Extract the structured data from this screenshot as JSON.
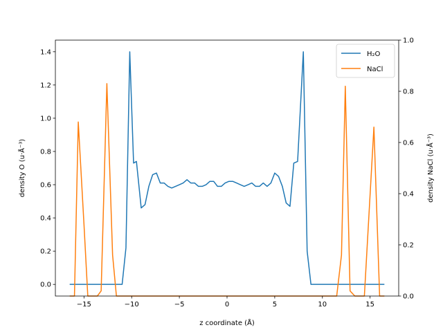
{
  "chart_data": {
    "type": "line",
    "title": "",
    "xlabel": "z coordinate (Å)",
    "ylabel_left": "density O (u·Å⁻³)",
    "ylabel_right": "density NaCl (u·Å⁻³)",
    "xlim": [
      -18,
      18
    ],
    "ylim_left": [
      -0.07,
      1.47
    ],
    "ylim_right": [
      0.0,
      1.0
    ],
    "x_ticks": [
      -15,
      -10,
      -5,
      0,
      5,
      10,
      15
    ],
    "x_tick_labels": [
      "−15",
      "−10",
      "−5",
      "0",
      "5",
      "10",
      "15"
    ],
    "y_left_ticks": [
      0.0,
      0.2,
      0.4,
      0.6,
      0.8,
      1.0,
      1.2,
      1.4
    ],
    "y_left_tick_labels": [
      "0.0",
      "0.2",
      "0.4",
      "0.6",
      "0.8",
      "1.0",
      "1.2",
      "1.4"
    ],
    "y_right_ticks": [
      0.0,
      0.2,
      0.4,
      0.6,
      0.8,
      1.0
    ],
    "y_right_tick_labels": [
      "0.0",
      "0.2",
      "0.4",
      "0.6",
      "0.8",
      "1.0"
    ],
    "grid": false,
    "legend_position": "top-right",
    "series": [
      {
        "name": "H₂O",
        "axis": "left",
        "color": "#1f77b4",
        "points": [
          [
            -16.5,
            0.0
          ],
          [
            -15.5,
            0.0
          ],
          [
            -14.5,
            0.0
          ],
          [
            -13.5,
            0.0
          ],
          [
            -12.5,
            0.0
          ],
          [
            -11.5,
            0.0
          ],
          [
            -11.0,
            0.0
          ],
          [
            -10.6,
            0.22
          ],
          [
            -10.2,
            1.4
          ],
          [
            -9.8,
            0.73
          ],
          [
            -9.5,
            0.74
          ],
          [
            -9.0,
            0.46
          ],
          [
            -8.6,
            0.48
          ],
          [
            -8.2,
            0.59
          ],
          [
            -7.8,
            0.66
          ],
          [
            -7.4,
            0.67
          ],
          [
            -7.0,
            0.61
          ],
          [
            -6.6,
            0.61
          ],
          [
            -6.2,
            0.59
          ],
          [
            -5.8,
            0.58
          ],
          [
            -5.4,
            0.59
          ],
          [
            -5.0,
            0.6
          ],
          [
            -4.6,
            0.61
          ],
          [
            -4.2,
            0.63
          ],
          [
            -3.8,
            0.61
          ],
          [
            -3.4,
            0.61
          ],
          [
            -3.0,
            0.59
          ],
          [
            -2.6,
            0.59
          ],
          [
            -2.2,
            0.6
          ],
          [
            -1.8,
            0.62
          ],
          [
            -1.4,
            0.62
          ],
          [
            -1.0,
            0.59
          ],
          [
            -0.6,
            0.59
          ],
          [
            -0.2,
            0.61
          ],
          [
            0.2,
            0.62
          ],
          [
            0.6,
            0.62
          ],
          [
            1.0,
            0.61
          ],
          [
            1.4,
            0.6
          ],
          [
            1.8,
            0.59
          ],
          [
            2.2,
            0.6
          ],
          [
            2.6,
            0.61
          ],
          [
            3.0,
            0.59
          ],
          [
            3.4,
            0.59
          ],
          [
            3.8,
            0.61
          ],
          [
            4.2,
            0.59
          ],
          [
            4.6,
            0.61
          ],
          [
            5.0,
            0.67
          ],
          [
            5.4,
            0.65
          ],
          [
            5.8,
            0.59
          ],
          [
            6.2,
            0.49
          ],
          [
            6.6,
            0.47
          ],
          [
            7.0,
            0.73
          ],
          [
            7.4,
            0.74
          ],
          [
            8.0,
            1.4
          ],
          [
            8.4,
            0.2
          ],
          [
            8.8,
            0.0
          ],
          [
            9.2,
            0.0
          ],
          [
            10.0,
            0.0
          ],
          [
            12.0,
            0.0
          ],
          [
            14.0,
            0.0
          ],
          [
            16.5,
            0.0
          ]
        ]
      },
      {
        "name": "NaCl",
        "axis": "right",
        "color": "#ff7f0e",
        "points": [
          [
            -16.5,
            0.0
          ],
          [
            -16.0,
            0.0
          ],
          [
            -15.6,
            0.68
          ],
          [
            -15.0,
            0.28
          ],
          [
            -14.6,
            0.0
          ],
          [
            -13.6,
            0.0
          ],
          [
            -13.2,
            0.02
          ],
          [
            -12.6,
            0.83
          ],
          [
            -12.0,
            0.16
          ],
          [
            -11.6,
            0.0
          ],
          [
            -11.2,
            0.0
          ],
          [
            -10.0,
            0.0
          ],
          [
            -5.0,
            0.0
          ],
          [
            0.0,
            0.0
          ],
          [
            5.0,
            0.0
          ],
          [
            10.0,
            0.0
          ],
          [
            11.0,
            0.0
          ],
          [
            11.5,
            0.0
          ],
          [
            12.0,
            0.16
          ],
          [
            12.4,
            0.82
          ],
          [
            12.9,
            0.02
          ],
          [
            13.4,
            0.0
          ],
          [
            14.4,
            0.0
          ],
          [
            15.4,
            0.66
          ],
          [
            16.0,
            0.0
          ],
          [
            16.5,
            0.0
          ]
        ]
      }
    ]
  }
}
